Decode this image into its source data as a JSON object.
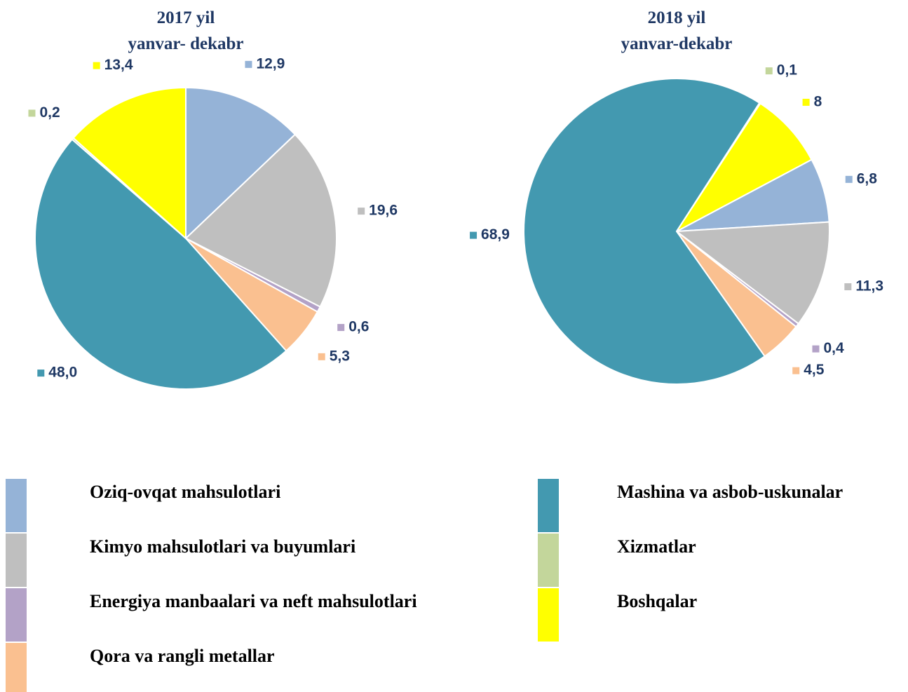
{
  "chart_data": [
    {
      "type": "pie",
      "title": "2017 yil",
      "subtitle": "yanvar- dekabr",
      "categories": [
        "Oziq-ovqat mahsulotlari",
        "Kimyo mahsulotlari va buyumlari",
        "Energiya manbaalari va neft mahsulotlari",
        "Qora va rangli metallar",
        "Mashina va asbob-uskunalar",
        "Xizmatlar",
        "Boshqalar"
      ],
      "colors": [
        "#95b3d7",
        "#bfbfbf",
        "#b3a2c7",
        "#fac090",
        "#4399b0",
        "#c3d69b",
        "#ffff00"
      ],
      "values": [
        12.9,
        19.6,
        0.6,
        5.3,
        48.0,
        0.2,
        13.4
      ],
      "value_labels": [
        "12,9",
        "19,6",
        "0,6",
        "5,3",
        "48,0",
        "0,2",
        "13,4"
      ]
    },
    {
      "type": "pie",
      "title": "2018 yil",
      "subtitle": "yanvar-dekabr",
      "categories": [
        "Oziq-ovqat mahsulotlari",
        "Kimyo mahsulotlari va buyumlari",
        "Energiya manbaalari va neft mahsulotlari",
        "Qora va rangli metallar",
        "Mashina va asbob-uskunalar",
        "Xizmatlar",
        "Boshqalar"
      ],
      "colors": [
        "#95b3d7",
        "#bfbfbf",
        "#b3a2c7",
        "#fac090",
        "#4399b0",
        "#c3d69b",
        "#ffff00"
      ],
      "values": [
        6.8,
        11.3,
        0.4,
        4.5,
        68.9,
        0.1,
        8
      ],
      "value_labels": [
        "6,8",
        "11,3",
        "0,4",
        "4,5",
        "68,9",
        "0,1",
        "8"
      ]
    }
  ]
}
